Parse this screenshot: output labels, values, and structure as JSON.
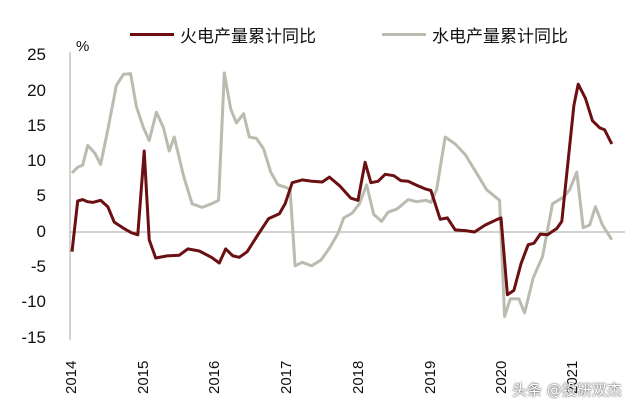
{
  "chart_data": {
    "type": "line",
    "title": "",
    "xlabel": "",
    "ylabel": "%",
    "ylim": [
      -15,
      25
    ],
    "yticks": [
      25,
      20,
      15,
      10,
      5,
      0,
      -5,
      -10,
      -15
    ],
    "xticks": [
      "2014",
      "2015",
      "2016",
      "2017",
      "2018",
      "2019",
      "2020",
      "2021"
    ],
    "xlim": [
      2014,
      2021.75
    ],
    "grid": false,
    "legend_position": "top",
    "series": [
      {
        "name": "火电产量累计同比",
        "color": "#6b0f12",
        "points": [
          [
            2014.0,
            -2.8
          ],
          [
            2014.08,
            4.4
          ],
          [
            2014.15,
            4.6
          ],
          [
            2014.22,
            4.3
          ],
          [
            2014.29,
            4.2
          ],
          [
            2014.4,
            4.5
          ],
          [
            2014.5,
            3.6
          ],
          [
            2014.59,
            1.4
          ],
          [
            2014.71,
            0.6
          ],
          [
            2014.83,
            -0.1
          ],
          [
            2014.92,
            -0.4
          ],
          [
            2015.01,
            11.5
          ],
          [
            2015.08,
            -1.1
          ],
          [
            2015.17,
            -3.7
          ],
          [
            2015.33,
            -3.4
          ],
          [
            2015.5,
            -3.3
          ],
          [
            2015.62,
            -2.4
          ],
          [
            2015.78,
            -2.7
          ],
          [
            2015.95,
            -3.6
          ],
          [
            2016.06,
            -4.4
          ],
          [
            2016.15,
            -2.4
          ],
          [
            2016.25,
            -3.4
          ],
          [
            2016.34,
            -3.6
          ],
          [
            2016.45,
            -2.8
          ],
          [
            2016.6,
            -0.4
          ],
          [
            2016.75,
            1.9
          ],
          [
            2016.9,
            2.6
          ],
          [
            2016.98,
            4.0
          ],
          [
            2017.08,
            7.0
          ],
          [
            2017.22,
            7.4
          ],
          [
            2017.36,
            7.2
          ],
          [
            2017.5,
            7.1
          ],
          [
            2017.6,
            7.8
          ],
          [
            2017.75,
            6.5
          ],
          [
            2017.9,
            4.8
          ],
          [
            2018.0,
            4.5
          ],
          [
            2018.1,
            9.9
          ],
          [
            2018.18,
            7.0
          ],
          [
            2018.28,
            7.2
          ],
          [
            2018.38,
            8.2
          ],
          [
            2018.5,
            8.0
          ],
          [
            2018.6,
            7.3
          ],
          [
            2018.7,
            7.2
          ],
          [
            2018.85,
            6.5
          ],
          [
            2018.95,
            6.1
          ],
          [
            2019.02,
            5.9
          ],
          [
            2019.15,
            1.8
          ],
          [
            2019.25,
            2.0
          ],
          [
            2019.36,
            0.3
          ],
          [
            2019.5,
            0.2
          ],
          [
            2019.63,
            0.0
          ],
          [
            2019.78,
            1.0
          ],
          [
            2019.95,
            1.8
          ],
          [
            2020.0,
            2.0
          ],
          [
            2020.09,
            -8.9
          ],
          [
            2020.18,
            -8.3
          ],
          [
            2020.28,
            -4.5
          ],
          [
            2020.38,
            -1.8
          ],
          [
            2020.46,
            -1.6
          ],
          [
            2020.55,
            -0.3
          ],
          [
            2020.65,
            -0.4
          ],
          [
            2020.78,
            0.5
          ],
          [
            2020.85,
            1.5
          ],
          [
            2021.02,
            18.0
          ],
          [
            2021.08,
            21.0
          ],
          [
            2021.18,
            19.0
          ],
          [
            2021.28,
            15.8
          ],
          [
            2021.38,
            14.8
          ],
          [
            2021.45,
            14.5
          ],
          [
            2021.55,
            12.5
          ]
        ]
      },
      {
        "name": "水电产量累计同比",
        "color": "#b9bcae",
        "points": [
          [
            2014.0,
            8.4
          ],
          [
            2014.08,
            9.2
          ],
          [
            2014.15,
            9.5
          ],
          [
            2014.22,
            12.3
          ],
          [
            2014.32,
            11.2
          ],
          [
            2014.4,
            9.6
          ],
          [
            2014.5,
            14.5
          ],
          [
            2014.62,
            20.8
          ],
          [
            2014.72,
            22.4
          ],
          [
            2014.82,
            22.5
          ],
          [
            2014.9,
            17.8
          ],
          [
            2015.0,
            14.8
          ],
          [
            2015.08,
            13.0
          ],
          [
            2015.18,
            17.0
          ],
          [
            2015.28,
            14.8
          ],
          [
            2015.36,
            11.5
          ],
          [
            2015.43,
            13.5
          ],
          [
            2015.56,
            8.0
          ],
          [
            2015.68,
            4.0
          ],
          [
            2015.82,
            3.5
          ],
          [
            2015.95,
            4.0
          ],
          [
            2016.05,
            4.5
          ],
          [
            2016.13,
            22.6
          ],
          [
            2016.22,
            17.5
          ],
          [
            2016.3,
            15.5
          ],
          [
            2016.4,
            16.8
          ],
          [
            2016.48,
            13.5
          ],
          [
            2016.58,
            13.3
          ],
          [
            2016.68,
            11.8
          ],
          [
            2016.78,
            8.5
          ],
          [
            2016.88,
            6.7
          ],
          [
            2017.0,
            6.3
          ],
          [
            2017.05,
            6.0
          ],
          [
            2017.12,
            -4.8
          ],
          [
            2017.22,
            -4.3
          ],
          [
            2017.35,
            -4.8
          ],
          [
            2017.48,
            -4.0
          ],
          [
            2017.6,
            -2.3
          ],
          [
            2017.72,
            -0.2
          ],
          [
            2017.8,
            2.0
          ],
          [
            2017.92,
            2.7
          ],
          [
            2018.02,
            4.0
          ],
          [
            2018.12,
            6.7
          ],
          [
            2018.22,
            2.5
          ],
          [
            2018.33,
            1.5
          ],
          [
            2018.42,
            2.8
          ],
          [
            2018.55,
            3.3
          ],
          [
            2018.7,
            4.6
          ],
          [
            2018.82,
            4.3
          ],
          [
            2018.95,
            4.5
          ],
          [
            2019.02,
            4.2
          ],
          [
            2019.1,
            6.0
          ],
          [
            2019.22,
            13.5
          ],
          [
            2019.36,
            12.5
          ],
          [
            2019.5,
            11.0
          ],
          [
            2019.65,
            8.5
          ],
          [
            2019.8,
            6.0
          ],
          [
            2019.92,
            5.0
          ],
          [
            2019.98,
            4.5
          ],
          [
            2020.05,
            -12.0
          ],
          [
            2020.13,
            -9.5
          ],
          [
            2020.25,
            -9.5
          ],
          [
            2020.33,
            -11.5
          ],
          [
            2020.45,
            -6.5
          ],
          [
            2020.58,
            -3.5
          ],
          [
            2020.72,
            4.0
          ],
          [
            2020.88,
            5.0
          ],
          [
            2020.96,
            6.0
          ],
          [
            2021.06,
            8.5
          ],
          [
            2021.15,
            0.6
          ],
          [
            2021.24,
            1.0
          ],
          [
            2021.32,
            3.6
          ],
          [
            2021.42,
            1.0
          ],
          [
            2021.55,
            -1.1
          ]
        ]
      }
    ]
  },
  "legend": {
    "items": [
      {
        "label": "火电产量累计同比",
        "color": "#6b0f12"
      },
      {
        "label": "水电产量累计同比",
        "color": "#b9bcae"
      }
    ]
  },
  "axis": {
    "unit": "%",
    "y_labels": [
      "25",
      "20",
      "15",
      "10",
      "5",
      "0",
      "-5",
      "-10",
      "-15"
    ],
    "x_labels": [
      "2014",
      "2015",
      "2016",
      "2017",
      "2018",
      "2019",
      "2020",
      "2021"
    ]
  },
  "watermark": {
    "text": "头条 @投研双杰"
  }
}
